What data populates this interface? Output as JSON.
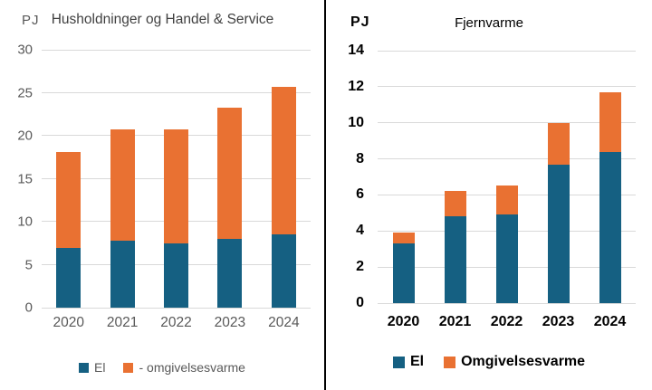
{
  "colors": {
    "el": "#156082",
    "omgivelsesvarme": "#E97132",
    "gridline": "#D9D9D9",
    "divider": "#000000",
    "left_text": "#595959",
    "right_text": "#000000"
  },
  "chart_data": [
    {
      "type": "bar",
      "stacked": true,
      "title": "Husholdninger og Handel & Service",
      "ylabel": "PJ",
      "xlabel": "",
      "categories": [
        "2020",
        "2021",
        "2022",
        "2023",
        "2024"
      ],
      "series": [
        {
          "name": "El",
          "color": "#156082",
          "values": [
            7.0,
            7.8,
            7.5,
            8.0,
            8.5
          ]
        },
        {
          "name": "- omgivelsesvarme",
          "color": "#E97132",
          "values": [
            11.1,
            12.9,
            13.2,
            15.3,
            17.2
          ]
        }
      ],
      "totals": [
        18.1,
        20.7,
        20.7,
        23.3,
        25.7
      ],
      "ylim": [
        0,
        30
      ],
      "yticks": [
        0,
        5,
        10,
        15,
        20,
        25,
        30
      ],
      "grid": true,
      "legend_position": "bottom"
    },
    {
      "type": "bar",
      "stacked": true,
      "title": "Fjernvarme",
      "ylabel": "PJ",
      "xlabel": "",
      "categories": [
        "2020",
        "2021",
        "2022",
        "2023",
        "2024"
      ],
      "series": [
        {
          "name": "El",
          "color": "#156082",
          "values": [
            3.3,
            4.8,
            4.9,
            7.7,
            8.4
          ]
        },
        {
          "name": "Omgivelsesvarme",
          "color": "#E97132",
          "values": [
            0.6,
            1.4,
            1.6,
            2.3,
            3.3
          ]
        }
      ],
      "totals": [
        3.9,
        6.2,
        6.5,
        10.0,
        11.7
      ],
      "ylim": [
        0,
        14
      ],
      "yticks": [
        0,
        2,
        4,
        6,
        8,
        10,
        12,
        14
      ],
      "grid": true,
      "legend_position": "bottom"
    }
  ]
}
